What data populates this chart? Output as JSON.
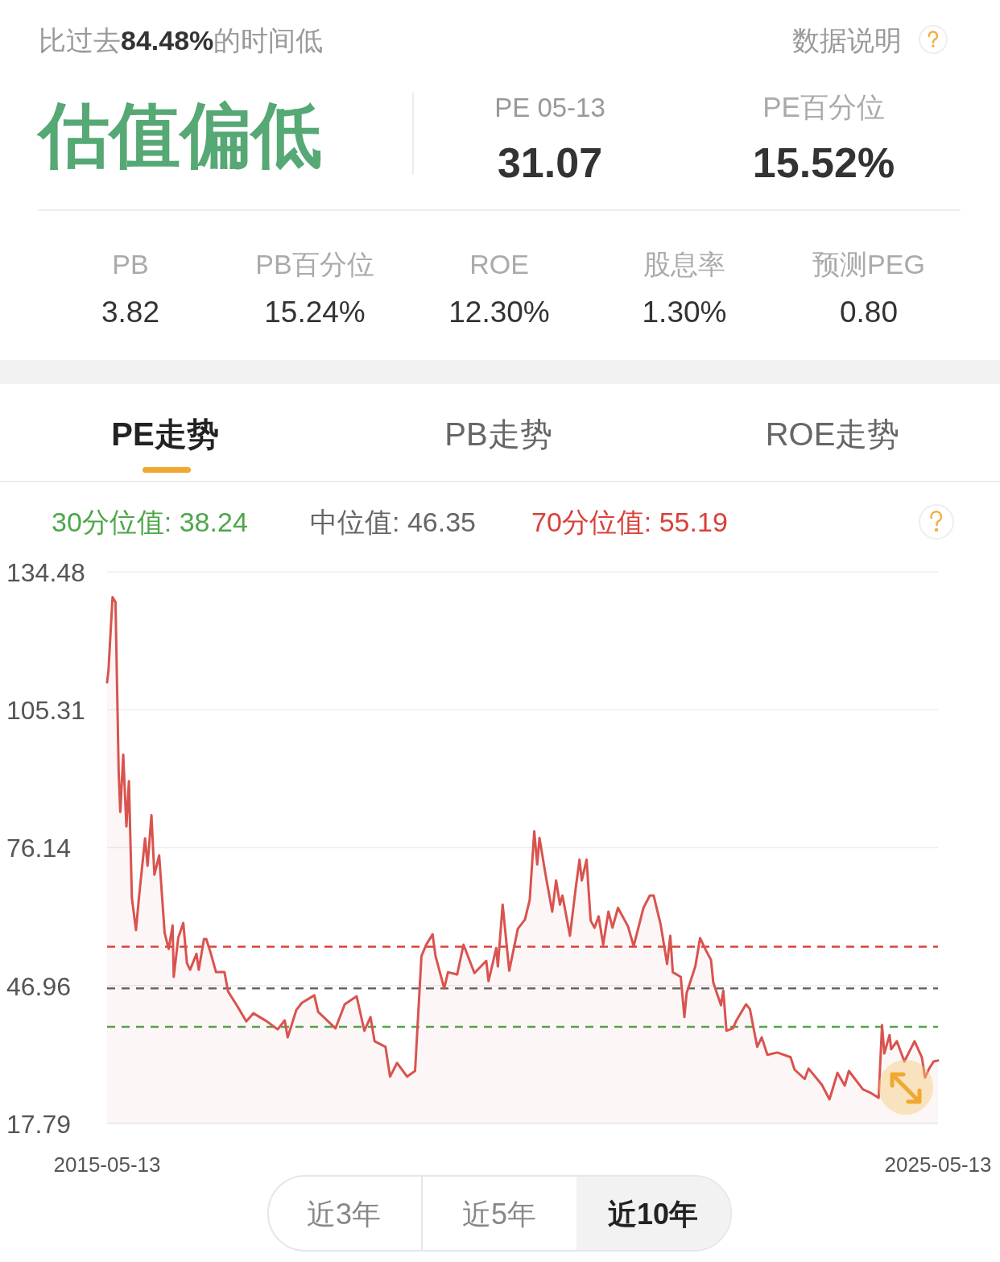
{
  "chart_data": {
    "type": "area",
    "title": "估值偏低",
    "annotations": [
      "比过去84.48%的时间低",
      "数据说明",
      "PE 05-13",
      "31.07",
      "PE百分位",
      "15.52%",
      "PB",
      "3.82",
      "PB百分位",
      "15.24%",
      "ROE",
      "12.30%",
      "股息率",
      "1.30%",
      "预测PEG",
      "0.80",
      "PE走势",
      "PB走势",
      "ROE走势",
      "近3年",
      "近5年",
      "近10年"
    ],
    "x": [
      "2015-05-13",
      "2015-05-19",
      "2015-06-06",
      "2015-06-19",
      "2015-07-03",
      "2015-07-10",
      "2015-07-23",
      "2015-08-06",
      "2015-08-17",
      "2015-08-30",
      "2015-09-17",
      "2015-09-30",
      "2015-10-27",
      "2015-11-07",
      "2015-11-24",
      "2015-12-07",
      "2015-12-28",
      "2016-01-21",
      "2016-02-08",
      "2016-02-25",
      "2016-03-01",
      "2016-03-21",
      "2016-04-12",
      "2016-04-28",
      "2016-05-12",
      "2016-06-09",
      "2016-06-19",
      "2016-07-12",
      "2016-07-22",
      "2016-08-09",
      "2016-09-03",
      "2016-10-10",
      "2016-10-26",
      "2016-12-07",
      "2017-01-14",
      "2017-02-14",
      "2017-04-14",
      "2017-06-01",
      "2017-07-02",
      "2017-07-15",
      "2017-08-22",
      "2017-09-15",
      "2017-11-09",
      "2017-11-26",
      "2018-02-10",
      "2018-03-23",
      "2018-05-14",
      "2018-06-17",
      "2018-07-14",
      "2018-08-01",
      "2018-09-18",
      "2018-10-08",
      "2018-11-08",
      "2018-12-22",
      "2019-01-26",
      "2019-02-23",
      "2019-03-16",
      "2019-04-13",
      "2019-04-26",
      "2019-06-03",
      "2019-06-20",
      "2019-07-30",
      "2019-08-27",
      "2019-10-14",
      "2019-12-05",
      "2019-12-15",
      "2020-01-18",
      "2020-01-25",
      "2020-02-15",
      "2020-03-15",
      "2020-04-22",
      "2020-05-23",
      "2020-06-13",
      "2020-07-03",
      "2020-07-16",
      "2020-07-26",
      "2020-08-20",
      "2020-09-20",
      "2020-10-07",
      "2020-10-24",
      "2020-11-04",
      "2020-12-07",
      "2021-01-01",
      "2021-01-18",
      "2021-01-28",
      "2021-02-18",
      "2021-03-08",
      "2021-03-25",
      "2021-04-12",
      "2021-05-02",
      "2021-05-25",
      "2021-06-12",
      "2021-07-06",
      "2021-08-19",
      "2021-09-13",
      "2021-10-26",
      "2021-11-23",
      "2021-12-10",
      "2022-01-10",
      "2022-02-07",
      "2022-02-21",
      "2022-03-04",
      "2022-04-08",
      "2022-04-24",
      "2022-05-04",
      "2022-06-11",
      "2022-07-02",
      "2022-07-28",
      "2022-08-19",
      "2022-08-29",
      "2022-10-02",
      "2022-10-12",
      "2022-10-26",
      "2022-11-23",
      "2022-12-09",
      "2023-01-20",
      "2023-02-06",
      "2023-03-10",
      "2023-03-30",
      "2023-04-24",
      "2023-06-07",
      "2023-08-04",
      "2023-08-21",
      "2023-10-05",
      "2023-10-22",
      "2023-12-19",
      "2024-01-22",
      "2024-02-26",
      "2024-03-29",
      "2024-04-16",
      "2024-06-17",
      "2024-07-20",
      "2024-08-25",
      "2024-09-09",
      "2024-09-19",
      "2024-10-12",
      "2024-10-19",
      "2024-11-13",
      "2024-12-16",
      "2025-01-30",
      "2025-03-03",
      "2025-03-17",
      "2025-04-04",
      "2025-04-24",
      "2025-05-13"
    ],
    "series": [
      {
        "color": "#d9534f",
        "values": [
          111.1,
          113.6,
          129.1,
          128.1,
          92.0,
          83.7,
          95.8,
          80.6,
          90.2,
          65.5,
          58.7,
          65.5,
          78.1,
          72.3,
          83.0,
          70.4,
          74.5,
          58.1,
          54.7,
          59.7,
          48.8,
          57.1,
          60.2,
          51.7,
          50.3,
          53.7,
          50.3,
          56.8,
          56.8,
          54.1,
          49.8,
          49.8,
          45.7,
          42.5,
          39.4,
          41.1,
          39.4,
          37.7,
          39.6,
          36.0,
          41.8,
          43.3,
          44.9,
          41.4,
          37.9,
          43.0,
          44.7,
          37.4,
          40.3,
          35.2,
          34.0,
          27.7,
          30.6,
          27.7,
          28.9,
          53.2,
          55.6,
          57.8,
          53.2,
          46.4,
          49.8,
          49.3,
          55.6,
          49.6,
          52.2,
          47.9,
          54.9,
          51.0,
          64.1,
          50.1,
          59.0,
          60.9,
          65.1,
          79.6,
          72.6,
          78.2,
          70.9,
          62.6,
          69.2,
          64.1,
          66.0,
          57.5,
          67.5,
          73.6,
          69.2,
          73.6,
          60.7,
          59.2,
          61.6,
          55.6,
          62.6,
          59.2,
          63.4,
          59.5,
          55.3,
          63.4,
          66.0,
          66.0,
          59.8,
          51.5,
          57.5,
          49.8,
          48.8,
          40.3,
          45.4,
          51.0,
          57.0,
          54.4,
          52.4,
          47.6,
          42.8,
          45.9,
          37.4,
          37.9,
          39.6,
          43.0,
          42.0,
          34.0,
          36.0,
          32.3,
          32.8,
          31.8,
          29.2,
          27.2,
          29.4,
          26.0,
          22.9,
          28.5,
          25.8,
          28.9,
          25.0,
          24.3,
          23.2,
          38.6,
          32.6,
          36.5,
          33.5,
          35.2,
          30.9,
          35.2,
          31.8,
          27.5,
          29.4,
          30.9,
          31.1
        ]
      }
    ],
    "xlim": [
      "2015-05-13",
      "2025-05-13"
    ],
    "xticks": [
      "2015-05-13",
      "2025-05-13"
    ],
    "ylim": [
      17.79,
      134.48
    ],
    "yticks": [
      17.79,
      46.96,
      76.14,
      105.31,
      134.48
    ],
    "grid": "y",
    "ref_lines": [
      {
        "axis": "y",
        "value": 38.24,
        "label": "30分位值: 38.24",
        "color": "#4ea64a",
        "line_style": "dashed"
      },
      {
        "axis": "y",
        "value": 46.35,
        "label": "中位值: 46.35",
        "color": "#666666",
        "line_style": "dashed"
      },
      {
        "axis": "y",
        "value": 55.19,
        "label": "70分位值: 55.19",
        "color": "#d9413a",
        "line_style": "dashed"
      }
    ]
  }
}
